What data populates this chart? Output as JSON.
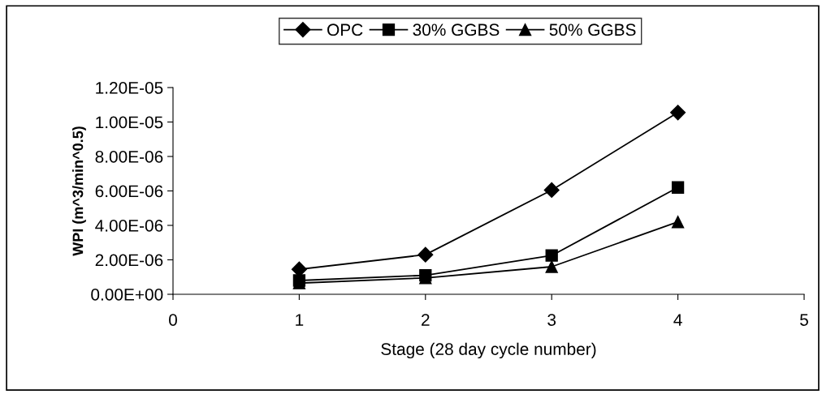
{
  "chart_data": {
    "type": "line",
    "xlabel": "Stage (28 day cycle number)",
    "ylabel": "WPI (m^3/min^0.5)",
    "xlim": [
      0,
      5
    ],
    "xticks": [
      0,
      1,
      2,
      3,
      4,
      5
    ],
    "ylim": [
      0,
      1.2e-05
    ],
    "yticks": [
      {
        "value": 0,
        "label": "0.00E+00"
      },
      {
        "value": 2e-06,
        "label": "2.00E-06"
      },
      {
        "value": 4e-06,
        "label": "4.00E-06"
      },
      {
        "value": 6e-06,
        "label": "6.00E-06"
      },
      {
        "value": 8e-06,
        "label": "8.00E-06"
      },
      {
        "value": 1e-05,
        "label": "1.00E-05"
      },
      {
        "value": 1.2e-05,
        "label": "1.20E-05"
      }
    ],
    "x": [
      1,
      2,
      3,
      4
    ],
    "grid": false,
    "legend": "top",
    "line_style": "solid",
    "series": [
      {
        "name": "OPC",
        "color": "#000000",
        "marker": "diamond",
        "values": [
          1.45e-06,
          2.3e-06,
          6.05e-06,
          1.055e-05
        ]
      },
      {
        "name": "30% GGBS",
        "color": "#000000",
        "marker": "square",
        "values": [
          8e-07,
          1.1e-06,
          2.25e-06,
          6.2e-06
        ]
      },
      {
        "name": "50% GGBS",
        "color": "#000000",
        "marker": "triangle",
        "values": [
          6.5e-07,
          9.5e-07,
          1.6e-06,
          4.2e-06
        ]
      }
    ]
  }
}
